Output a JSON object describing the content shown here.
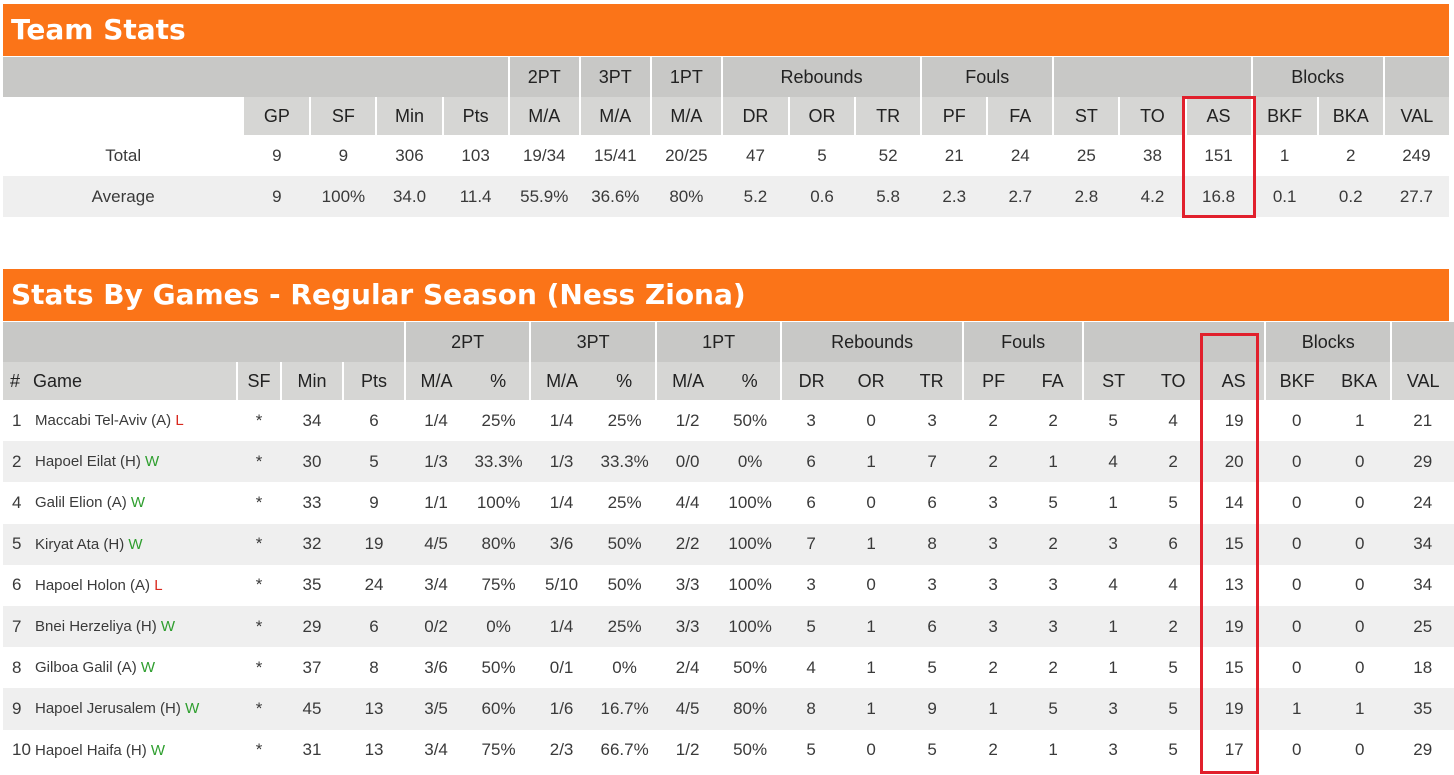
{
  "team_stats": {
    "title": "Team Stats",
    "groups": {
      "pt2": "2PT",
      "pt3": "3PT",
      "pt1": "1PT",
      "rebounds": "Rebounds",
      "fouls": "Fouls",
      "blocks": "Blocks"
    },
    "columns": [
      "GP",
      "SF",
      "Min",
      "Pts",
      "M/A",
      "M/A",
      "M/A",
      "DR",
      "OR",
      "TR",
      "PF",
      "FA",
      "ST",
      "TO",
      "AS",
      "BKF",
      "BKA",
      "VAL"
    ],
    "rows": [
      {
        "label": "Total",
        "values": [
          "9",
          "9",
          "306",
          "103",
          "19/34",
          "15/41",
          "20/25",
          "47",
          "5",
          "52",
          "21",
          "24",
          "25",
          "38",
          "151",
          "1",
          "2",
          "249"
        ]
      },
      {
        "label": "Average",
        "values": [
          "9",
          "100%",
          "34.0",
          "11.4",
          "55.9%",
          "36.6%",
          "80%",
          "5.2",
          "0.6",
          "5.8",
          "2.3",
          "2.7",
          "2.8",
          "4.2",
          "16.8",
          "0.1",
          "0.2",
          "27.7"
        ]
      }
    ]
  },
  "games_stats": {
    "title": "Stats By Games - Regular Season (Ness Ziona)",
    "groups": {
      "pt2": "2PT",
      "pt3": "3PT",
      "pt1": "1PT",
      "rebounds": "Rebounds",
      "fouls": "Fouls",
      "blocks": "Blocks"
    },
    "columns": [
      "#",
      "Game",
      "SF",
      "Min",
      "Pts",
      "M/A",
      "%",
      "M/A",
      "%",
      "M/A",
      "%",
      "DR",
      "OR",
      "TR",
      "PF",
      "FA",
      "ST",
      "TO",
      "AS",
      "BKF",
      "BKA",
      "VAL"
    ],
    "rows": [
      {
        "num": "1",
        "game": "Maccabi Tel-Aviv (A)",
        "result": "L",
        "values": [
          "*",
          "34",
          "6",
          "1/4",
          "25%",
          "1/4",
          "25%",
          "1/2",
          "50%",
          "3",
          "0",
          "3",
          "2",
          "2",
          "5",
          "4",
          "19",
          "0",
          "1",
          "21"
        ]
      },
      {
        "num": "2",
        "game": "Hapoel Eilat (H)",
        "result": "W",
        "values": [
          "*",
          "30",
          "5",
          "1/3",
          "33.3%",
          "1/3",
          "33.3%",
          "0/0",
          "0%",
          "6",
          "1",
          "7",
          "2",
          "1",
          "4",
          "2",
          "20",
          "0",
          "0",
          "29"
        ]
      },
      {
        "num": "4",
        "game": "Galil Elion (A)",
        "result": "W",
        "values": [
          "*",
          "33",
          "9",
          "1/1",
          "100%",
          "1/4",
          "25%",
          "4/4",
          "100%",
          "6",
          "0",
          "6",
          "3",
          "5",
          "1",
          "5",
          "14",
          "0",
          "0",
          "24"
        ]
      },
      {
        "num": "5",
        "game": "Kiryat Ata (H)",
        "result": "W",
        "values": [
          "*",
          "32",
          "19",
          "4/5",
          "80%",
          "3/6",
          "50%",
          "2/2",
          "100%",
          "7",
          "1",
          "8",
          "3",
          "2",
          "3",
          "6",
          "15",
          "0",
          "0",
          "34"
        ]
      },
      {
        "num": "6",
        "game": "Hapoel Holon (A)",
        "result": "L",
        "values": [
          "*",
          "35",
          "24",
          "3/4",
          "75%",
          "5/10",
          "50%",
          "3/3",
          "100%",
          "3",
          "0",
          "3",
          "3",
          "3",
          "4",
          "4",
          "13",
          "0",
          "0",
          "34"
        ]
      },
      {
        "num": "7",
        "game": "Bnei Herzeliya (H)",
        "result": "W",
        "values": [
          "*",
          "29",
          "6",
          "0/2",
          "0%",
          "1/4",
          "25%",
          "3/3",
          "100%",
          "5",
          "1",
          "6",
          "3",
          "3",
          "1",
          "2",
          "19",
          "0",
          "0",
          "25"
        ]
      },
      {
        "num": "8",
        "game": "Gilboa Galil (A)",
        "result": "W",
        "values": [
          "*",
          "37",
          "8",
          "3/6",
          "50%",
          "0/1",
          "0%",
          "2/4",
          "50%",
          "4",
          "1",
          "5",
          "2",
          "2",
          "1",
          "5",
          "15",
          "0",
          "0",
          "18"
        ]
      },
      {
        "num": "9",
        "game": "Hapoel Jerusalem (H)",
        "result": "W",
        "values": [
          "*",
          "45",
          "13",
          "3/5",
          "60%",
          "1/6",
          "16.7%",
          "4/5",
          "80%",
          "8",
          "1",
          "9",
          "1",
          "5",
          "3",
          "5",
          "19",
          "1",
          "1",
          "35"
        ]
      },
      {
        "num": "10",
        "game": "Hapoel Haifa (H)",
        "result": "W",
        "values": [
          "*",
          "31",
          "13",
          "3/4",
          "75%",
          "2/3",
          "66.7%",
          "1/2",
          "50%",
          "5",
          "0",
          "5",
          "2",
          "1",
          "3",
          "5",
          "17",
          "0",
          "0",
          "29"
        ]
      }
    ]
  },
  "colors": {
    "header_orange": "#fb7418",
    "highlight_red": "#e1202c",
    "win_green": "#2e9e2e",
    "loss_red": "#d9281e"
  }
}
